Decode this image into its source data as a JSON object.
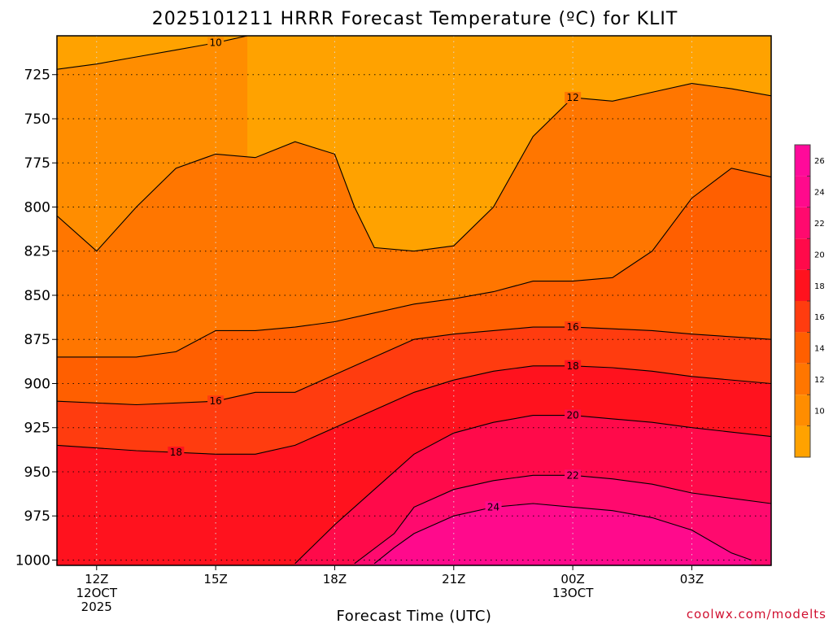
{
  "chart_data": {
    "type": "contour",
    "title": "2025101211 HRRR Forecast Temperature (ºC) for KLIT",
    "xlabel": "Forecast Time (UTC)",
    "ylabel": "",
    "credit": "coolwx.com/modelts",
    "x_hours": [
      0,
      3,
      6,
      9,
      12,
      15
    ],
    "x_ticks": [
      {
        "hour": 0,
        "lines": [
          "12Z",
          "12OCT",
          "2025"
        ]
      },
      {
        "hour": 3,
        "lines": [
          "15Z"
        ]
      },
      {
        "hour": 6,
        "lines": [
          "18Z"
        ]
      },
      {
        "hour": 9,
        "lines": [
          "21Z"
        ]
      },
      {
        "hour": 12,
        "lines": [
          "00Z",
          "13OCT"
        ]
      },
      {
        "hour": 15,
        "lines": [
          "03Z"
        ]
      }
    ],
    "y_ticks": [
      725,
      750,
      775,
      800,
      825,
      850,
      875,
      900,
      925,
      950,
      975,
      1000
    ],
    "x_range_hours": [
      -1,
      17
    ],
    "y_range_hpa": [
      703,
      1003
    ],
    "ground_level_hpa": 1003,
    "contour_interval": 2,
    "colorbar_levels": [
      10,
      12,
      14,
      16,
      18,
      20,
      22,
      24,
      26
    ],
    "colors": {
      "under_10": "#ffa200",
      "10_12": "#ff8d00",
      "12_14": "#ff7600",
      "14_16": "#ff5f00",
      "16_18": "#ff3c0f",
      "18_20": "#ff121e",
      "20_22": "#ff0a4a",
      "22_24": "#ff0a6e",
      "24_26": "#ff0a8c",
      "over_26": "#ff0a9a",
      "ground": "#a0522d",
      "credit": "#d01030"
    },
    "contours": [
      {
        "level": 10,
        "path_hpa": [
          [
            -1,
            722
          ],
          [
            0,
            719
          ],
          [
            1,
            715
          ],
          [
            2,
            711
          ],
          [
            3,
            707
          ],
          [
            3.8,
            703
          ]
        ],
        "labeled_at_hour": 3
      },
      {
        "level": 12,
        "path_hpa": [
          [
            -1,
            805
          ],
          [
            0,
            825
          ],
          [
            1,
            800
          ],
          [
            2,
            778
          ],
          [
            3,
            770
          ],
          [
            4,
            772
          ],
          [
            5,
            763
          ],
          [
            6,
            770
          ],
          [
            6.5,
            800
          ],
          [
            7,
            823
          ],
          [
            8,
            825
          ],
          [
            9,
            822
          ],
          [
            10,
            800
          ],
          [
            11,
            760
          ],
          [
            12,
            738
          ],
          [
            13,
            740
          ],
          [
            14,
            735
          ],
          [
            15,
            730
          ],
          [
            16,
            733
          ],
          [
            17,
            737
          ]
        ],
        "labeled_at_hour": 12
      },
      {
        "level": 14,
        "path_hpa": [
          [
            -1,
            885
          ],
          [
            1,
            885
          ],
          [
            2,
            882
          ],
          [
            3,
            870
          ],
          [
            4,
            870
          ],
          [
            5,
            868
          ],
          [
            6,
            865
          ],
          [
            7,
            860
          ],
          [
            8,
            855
          ],
          [
            9,
            852
          ],
          [
            10,
            848
          ],
          [
            11,
            842
          ],
          [
            12,
            842
          ],
          [
            13,
            840
          ],
          [
            14,
            825
          ],
          [
            15,
            795
          ],
          [
            16,
            778
          ],
          [
            17,
            783
          ]
        ],
        "labeled_at_hour": null
      },
      {
        "level": 16,
        "path_hpa": [
          [
            -1,
            910
          ],
          [
            1,
            912
          ],
          [
            3,
            910
          ],
          [
            4,
            905
          ],
          [
            5,
            905
          ],
          [
            6,
            895
          ],
          [
            7,
            885
          ],
          [
            8,
            875
          ],
          [
            9,
            872
          ],
          [
            10,
            870
          ],
          [
            11,
            868
          ],
          [
            12,
            868
          ],
          [
            13,
            869
          ],
          [
            14,
            870
          ],
          [
            15,
            872
          ],
          [
            17,
            875
          ]
        ],
        "labeled_at_hour": [
          3,
          12
        ]
      },
      {
        "level": 18,
        "path_hpa": [
          [
            -1,
            935
          ],
          [
            1,
            938
          ],
          [
            3,
            940
          ],
          [
            4,
            940
          ],
          [
            5,
            935
          ],
          [
            6,
            925
          ],
          [
            7,
            915
          ],
          [
            8,
            905
          ],
          [
            9,
            898
          ],
          [
            10,
            893
          ],
          [
            11,
            890
          ],
          [
            12,
            890
          ],
          [
            13,
            891
          ],
          [
            14,
            893
          ],
          [
            15,
            896
          ],
          [
            17,
            900
          ]
        ],
        "labeled_at_hour": [
          2,
          12
        ]
      },
      {
        "level": 20,
        "path_hpa": [
          [
            5,
            1002
          ],
          [
            6,
            980
          ],
          [
            7,
            960
          ],
          [
            8,
            940
          ],
          [
            9,
            928
          ],
          [
            10,
            922
          ],
          [
            11,
            918
          ],
          [
            12,
            918
          ],
          [
            13,
            920
          ],
          [
            14,
            922
          ],
          [
            15,
            925
          ],
          [
            17,
            930
          ]
        ],
        "labeled_at_hour": 12
      },
      {
        "level": 22,
        "path_hpa": [
          [
            6.5,
            1002
          ],
          [
            7.5,
            985
          ],
          [
            8,
            970
          ],
          [
            9,
            960
          ],
          [
            10,
            955
          ],
          [
            11,
            952
          ],
          [
            12,
            952
          ],
          [
            13,
            954
          ],
          [
            14,
            957
          ],
          [
            15,
            962
          ],
          [
            17,
            968
          ]
        ],
        "labeled_at_hour": 12
      },
      {
        "level": 24,
        "path_hpa": [
          [
            7,
            1002
          ],
          [
            7.5,
            993
          ],
          [
            8,
            985
          ],
          [
            9,
            975
          ],
          [
            10,
            970
          ],
          [
            11,
            968
          ],
          [
            12,
            970
          ],
          [
            13,
            972
          ],
          [
            14,
            976
          ],
          [
            15,
            983
          ],
          [
            16,
            996
          ],
          [
            16.5,
            1000
          ]
        ],
        "labeled_at_hour": 10
      }
    ]
  }
}
